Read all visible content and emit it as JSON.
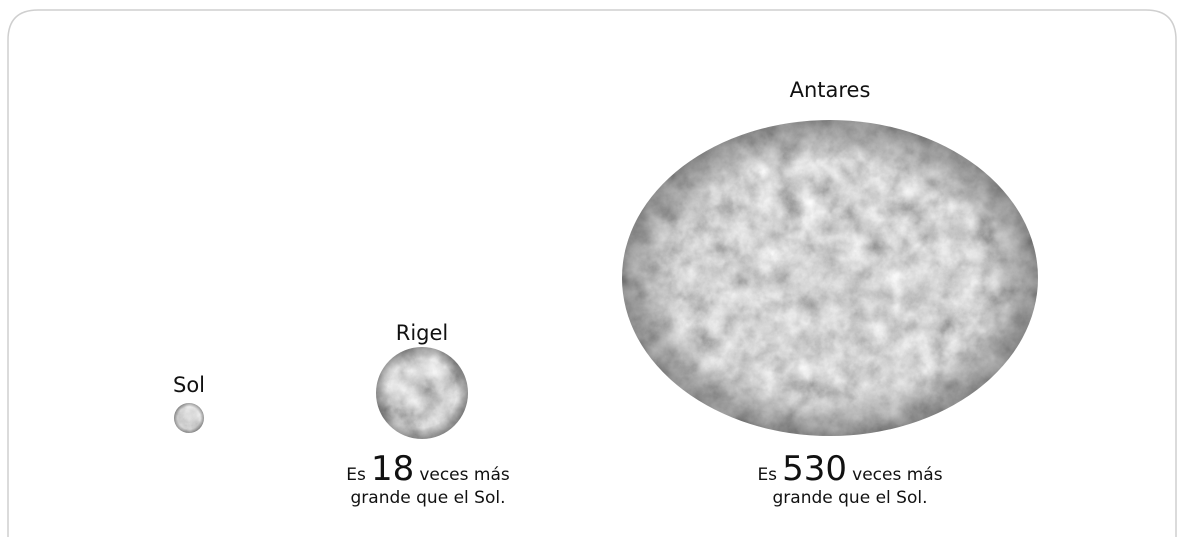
{
  "stars": [
    {
      "name": "Sol"
    },
    {
      "name": "Rigel",
      "caption": {
        "prefix": "Es",
        "number": "18",
        "suffix": "veces más",
        "line2": "grande que el Sol."
      }
    },
    {
      "name": "Antares",
      "caption": {
        "prefix": "Es",
        "number": "530",
        "suffix": "veces más",
        "line2": "grande que el Sol."
      }
    }
  ]
}
